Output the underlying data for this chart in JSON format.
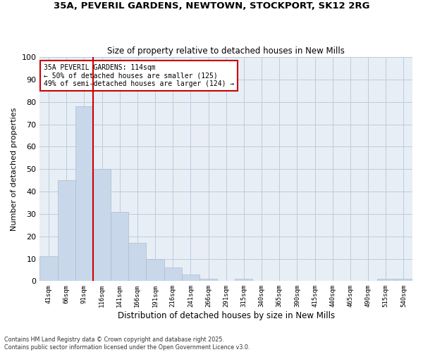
{
  "title_line1": "35A, PEVERIL GARDENS, NEWTOWN, STOCKPORT, SK12 2RG",
  "title_line2": "Size of property relative to detached houses in New Mills",
  "xlabel": "Distribution of detached houses by size in New Mills",
  "ylabel": "Number of detached properties",
  "categories": [
    "41sqm",
    "66sqm",
    "91sqm",
    "116sqm",
    "141sqm",
    "166sqm",
    "191sqm",
    "216sqm",
    "241sqm",
    "266sqm",
    "291sqm",
    "315sqm",
    "340sqm",
    "365sqm",
    "390sqm",
    "415sqm",
    "440sqm",
    "465sqm",
    "490sqm",
    "515sqm",
    "540sqm"
  ],
  "values": [
    11,
    45,
    78,
    50,
    31,
    17,
    10,
    6,
    3,
    1,
    0,
    1,
    0,
    0,
    0,
    0,
    0,
    0,
    0,
    1,
    1
  ],
  "bar_color": "#c8d8ea",
  "bar_edge_color": "#aabccc",
  "vline_x": 2.5,
  "vline_color": "#cc0000",
  "ylim": [
    0,
    100
  ],
  "yticks": [
    0,
    10,
    20,
    30,
    40,
    50,
    60,
    70,
    80,
    90,
    100
  ],
  "grid_color": "#bbccdd",
  "background_color": "#e8eef6",
  "annotation_text": "35A PEVERIL GARDENS: 114sqm\n← 50% of detached houses are smaller (125)\n49% of semi-detached houses are larger (124) →",
  "annotation_box_color": "#ffffff",
  "annotation_box_edge": "#cc0000",
  "footer_line1": "Contains HM Land Registry data © Crown copyright and database right 2025.",
  "footer_line2": "Contains public sector information licensed under the Open Government Licence v3.0."
}
